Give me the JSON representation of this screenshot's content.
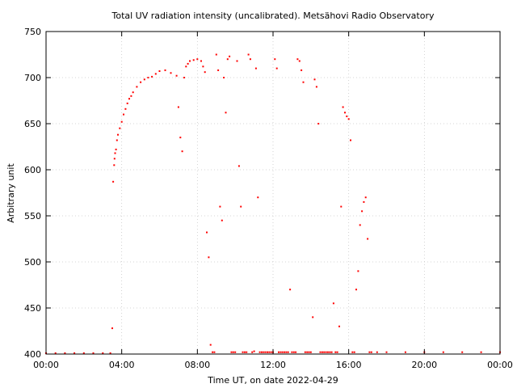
{
  "chart_data": {
    "type": "scatter",
    "title": "Total UV radiation intensity (uncalibrated). Metsähovi Radio Observatory",
    "xlabel": "Time UT, on date 2022-04-29",
    "ylabel": "Arbitrary unit",
    "xlim": [
      0,
      24
    ],
    "ylim": [
      400,
      750
    ],
    "x_ticks": [
      0,
      4,
      8,
      12,
      16,
      20,
      24
    ],
    "x_tick_labels": [
      "00:00",
      "04:00",
      "08:00",
      "12:00",
      "16:00",
      "20:00",
      "00:00"
    ],
    "y_ticks": [
      400,
      450,
      500,
      550,
      600,
      650,
      700,
      750
    ],
    "y_tick_labels": [
      "400",
      "450",
      "500",
      "550",
      "600",
      "650",
      "700",
      "750"
    ],
    "grid": true,
    "series_color": "#ff0000",
    "x_unit": "hours UT",
    "series": [
      {
        "x": [
          0.0,
          0.5,
          1.0,
          1.5,
          2.0,
          2.5,
          3.0,
          3.4,
          3.5,
          3.55,
          3.6,
          3.62,
          3.65,
          3.7,
          3.75,
          3.8,
          3.9,
          4.0,
          4.1,
          4.2,
          4.3,
          4.4,
          4.5,
          4.6,
          4.8,
          5.0,
          5.2,
          5.4,
          5.6,
          5.8,
          6.0,
          6.3,
          6.6,
          6.9,
          7.0,
          7.1,
          7.2,
          7.3,
          7.4,
          7.5,
          7.6,
          7.8,
          8.0,
          8.2,
          8.3,
          8.4,
          8.5,
          8.6,
          8.7,
          8.8,
          8.9,
          9.0,
          9.1,
          9.2,
          9.3,
          9.4,
          9.5,
          9.6,
          9.7,
          9.8,
          9.9,
          10.0,
          10.1,
          10.2,
          10.3,
          10.4,
          10.5,
          10.6,
          10.7,
          10.8,
          10.9,
          11.0,
          11.1,
          11.2,
          11.3,
          11.4,
          11.5,
          11.6,
          11.7,
          11.8,
          11.9,
          12.0,
          12.1,
          12.2,
          12.3,
          12.4,
          12.5,
          12.6,
          12.7,
          12.8,
          12.9,
          13.0,
          13.1,
          13.2,
          13.3,
          13.4,
          13.5,
          13.6,
          13.7,
          13.8,
          13.9,
          14.0,
          14.1,
          14.2,
          14.3,
          14.4,
          14.5,
          14.6,
          14.7,
          14.8,
          14.9,
          15.0,
          15.1,
          15.2,
          15.3,
          15.4,
          15.5,
          15.6,
          15.7,
          15.8,
          15.9,
          16.0,
          16.1,
          16.2,
          16.3,
          16.4,
          16.5,
          16.6,
          16.7,
          16.8,
          16.9,
          17.0,
          17.1,
          17.2,
          17.5,
          18.0,
          19.0,
          20.0,
          21.0,
          22.0,
          23.0,
          24.0
        ],
        "y": [
          401,
          401,
          401,
          401,
          401,
          401,
          401,
          401,
          428,
          587,
          605,
          612,
          618,
          622,
          632,
          638,
          645,
          652,
          660,
          666,
          672,
          677,
          680,
          684,
          690,
          695,
          698,
          700,
          701,
          704,
          707,
          708,
          705,
          702,
          668,
          635,
          620,
          700,
          712,
          715,
          718,
          719,
          720,
          718,
          712,
          706,
          532,
          505,
          410,
          402,
          402,
          725,
          708,
          560,
          545,
          700,
          662,
          720,
          723,
          402,
          402,
          402,
          718,
          604,
          560,
          402,
          402,
          402,
          725,
          720,
          402,
          403,
          710,
          570,
          402,
          402,
          402,
          402,
          402,
          402,
          402,
          402,
          720,
          710,
          402,
          402,
          402,
          402,
          402,
          402,
          470,
          402,
          402,
          402,
          720,
          718,
          708,
          695,
          402,
          402,
          402,
          402,
          440,
          698,
          690,
          650,
          402,
          402,
          402,
          402,
          402,
          402,
          402,
          455,
          402,
          402,
          430,
          560,
          668,
          662,
          658,
          655,
          632,
          402,
          402,
          470,
          490,
          540,
          555,
          565,
          570,
          525,
          402,
          402,
          402,
          402,
          402,
          402,
          402,
          402,
          402,
          402
        ]
      }
    ]
  }
}
